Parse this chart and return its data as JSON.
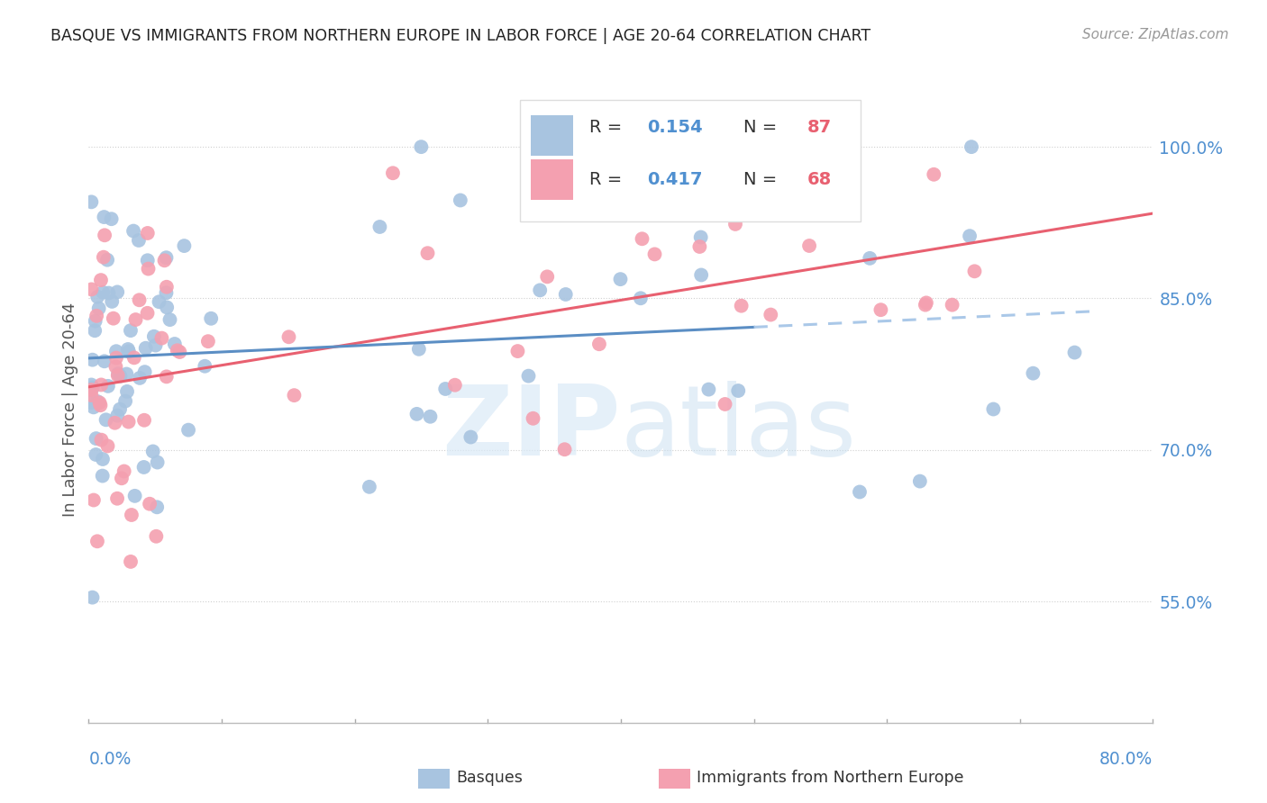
{
  "title": "BASQUE VS IMMIGRANTS FROM NORTHERN EUROPE IN LABOR FORCE | AGE 20-64 CORRELATION CHART",
  "source": "Source: ZipAtlas.com",
  "ylabel": "In Labor Force | Age 20-64",
  "y_tick_labels": [
    "55.0%",
    "70.0%",
    "85.0%",
    "100.0%"
  ],
  "y_tick_values": [
    0.55,
    0.7,
    0.85,
    1.0
  ],
  "xlim": [
    0.0,
    0.8
  ],
  "ylim": [
    0.43,
    1.05
  ],
  "blue_R": 0.154,
  "blue_N": 87,
  "pink_R": 0.417,
  "pink_N": 68,
  "legend_label_blue": "Basques",
  "legend_label_pink": "Immigrants from Northern Europe",
  "scatter_blue_color": "#a8c4e0",
  "scatter_pink_color": "#f4a0b0",
  "line_blue_color": "#5b8ec4",
  "line_pink_color": "#e86070",
  "line_blue_dashed_color": "#aac8e8",
  "bg_color": "#ffffff",
  "grid_color": "#d0d0d0",
  "title_color": "#222222",
  "axis_label_color": "#555555",
  "right_axis_color": "#5090d0",
  "bottom_label_color": "#5090d0"
}
